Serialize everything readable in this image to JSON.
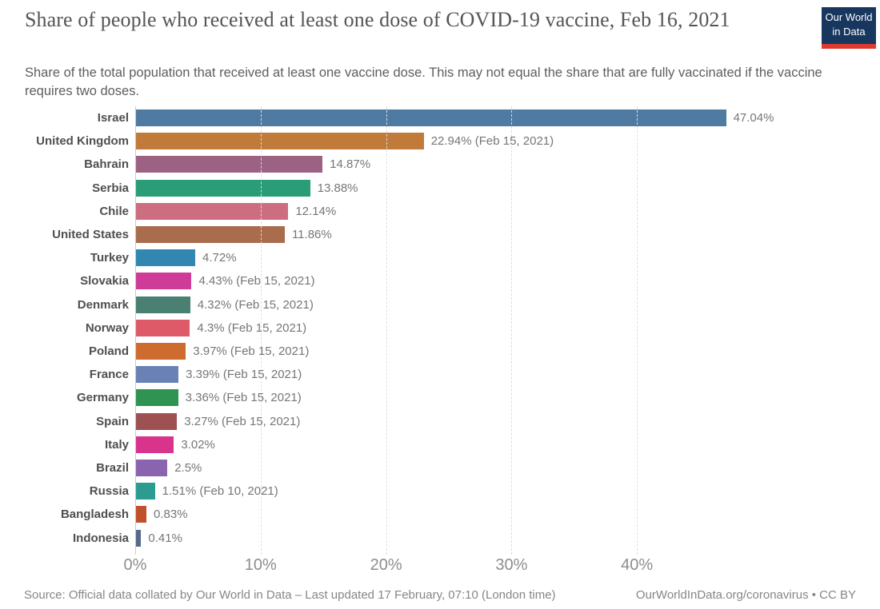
{
  "header": {
    "title": "Share of people who received at least one dose of COVID-19 vaccine, Feb 16, 2021",
    "subtitle": "Share of the total population that received at least one vaccine dose. This may not equal the share that are fully vaccinated if the vaccine requires two doses.",
    "logo": {
      "line1": "Our World",
      "line2": "in Data",
      "bg_color": "#18375F",
      "accent_color": "#E0392E"
    }
  },
  "chart_data": {
    "type": "bar",
    "orientation": "horizontal",
    "title": "Share of people who received at least one dose of COVID-19 vaccine, Feb 16, 2021",
    "categories": [
      "Israel",
      "United Kingdom",
      "Bahrain",
      "Serbia",
      "Chile",
      "United States",
      "Turkey",
      "Slovakia",
      "Denmark",
      "Norway",
      "Poland",
      "France",
      "Germany",
      "Spain",
      "Italy",
      "Brazil",
      "Russia",
      "Bangladesh",
      "Indonesia"
    ],
    "values": [
      47.04,
      22.94,
      14.87,
      13.88,
      12.14,
      11.86,
      4.72,
      4.43,
      4.32,
      4.3,
      3.97,
      3.39,
      3.36,
      3.27,
      3.02,
      2.5,
      1.51,
      0.83,
      0.41
    ],
    "value_labels": [
      "47.04%",
      "22.94% (Feb 15, 2021)",
      "14.87%",
      "13.88%",
      "12.14%",
      "11.86%",
      "4.72%",
      "4.43% (Feb 15, 2021)",
      "4.32% (Feb 15, 2021)",
      "4.3% (Feb 15, 2021)",
      "3.97% (Feb 15, 2021)",
      "3.39% (Feb 15, 2021)",
      "3.36% (Feb 15, 2021)",
      "3.27% (Feb 15, 2021)",
      "3.02%",
      "2.5%",
      "1.51% (Feb 10, 2021)",
      "0.83%",
      "0.41%"
    ],
    "bar_colors": [
      "#4F7AA2",
      "#C07A3A",
      "#9C6283",
      "#2A9C77",
      "#CC6E80",
      "#A96C4C",
      "#3187B2",
      "#CF3C98",
      "#4A8072",
      "#DE5A68",
      "#CE6C30",
      "#6981B5",
      "#2F9352",
      "#9D5152",
      "#D9348C",
      "#8A64AE",
      "#2B9C8F",
      "#C0512B",
      "#56698C"
    ],
    "x_tick_labels": [
      "0%",
      "10%",
      "20%",
      "30%",
      "40%"
    ],
    "x_tick_values": [
      0,
      10,
      20,
      30,
      40
    ],
    "xlim": [
      0,
      57
    ],
    "grid": "vertical-dashed",
    "xlabel": "",
    "ylabel": ""
  },
  "footer": {
    "source": "Source: Official data collated by Our World in Data – Last updated 17 February, 07:10 (London time)",
    "link": "OurWorldInData.org/coronavirus • CC BY"
  }
}
